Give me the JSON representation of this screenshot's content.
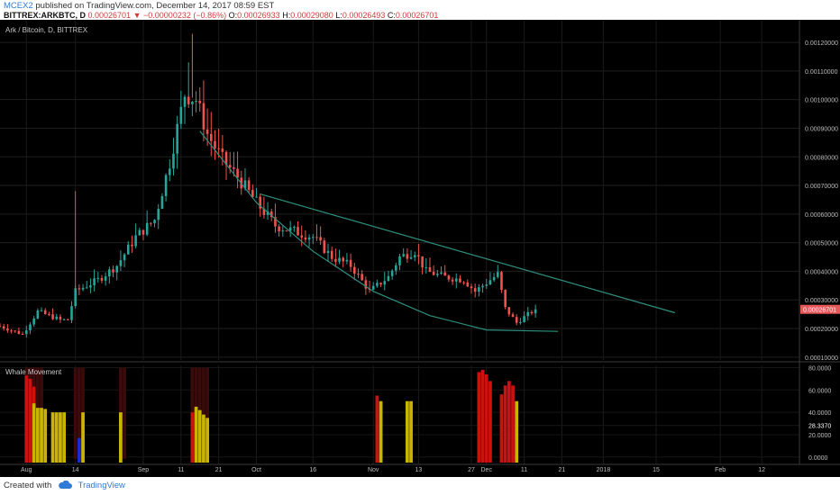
{
  "header": {
    "author": "MCEX2",
    "published": "published on TradingView.com, December 14, 2017 08:59 EST",
    "symbol": "BITTREX:ARKBTC, D",
    "last": "0.00026701",
    "arrow": "▼",
    "change": "−0.00000232 (−0.86%)",
    "o_label": "O:",
    "o_val": "0.00026933",
    "h_label": "H:",
    "h_val": "0.00029080",
    "l_label": "L:",
    "l_val": "0.00026493",
    "c_label": "C:",
    "c_val": "0.00026701"
  },
  "footer": {
    "created": "Created with",
    "brand": "TradingView"
  },
  "colors": {
    "up": "#26a69a",
    "down": "#ef5350",
    "trendline": "#2f8f7f",
    "whale_red": "#cc1111",
    "whale_yellow": "#c9b400",
    "whale_blue": "#1a2bd6",
    "last_price_badge": "#e45a5a"
  },
  "chart_data": [
    {
      "type": "candlestick",
      "title": "Ark / Bitcoin, D, BITTREX",
      "y_ticks": [
        0.0001,
        0.0002,
        0.0003,
        0.0004,
        0.0005,
        0.0006,
        0.0007,
        0.0008,
        0.0009,
        0.001,
        0.0011,
        0.0012
      ],
      "y_tick_labels": [
        "0.00010000",
        "0.00020000",
        "0.00030000",
        "0.00040000",
        "0.00050000",
        "0.00060000",
        "0.00070000",
        "0.00080000",
        "0.00090000",
        "0.00100000",
        "0.00110000",
        "0.00120000"
      ],
      "ylim": [
        9e-05,
        0.00126
      ],
      "last_price_label": "0.00026701",
      "last_price": 0.00026701,
      "x_start": "2017-07-25",
      "x_ticks": [
        {
          "date": "2017-08-01",
          "label": "Aug"
        },
        {
          "date": "2017-08-14",
          "label": "14"
        },
        {
          "date": "2017-09-01",
          "label": "Sep"
        },
        {
          "date": "2017-09-11",
          "label": "11"
        },
        {
          "date": "2017-09-21",
          "label": "21"
        },
        {
          "date": "2017-10-01",
          "label": "Oct"
        },
        {
          "date": "2017-10-16",
          "label": "16"
        },
        {
          "date": "2017-11-01",
          "label": "Nov"
        },
        {
          "date": "2017-11-13",
          "label": "13"
        },
        {
          "date": "2017-11-27",
          "label": "27"
        },
        {
          "date": "2017-12-01",
          "label": "Dec"
        },
        {
          "date": "2017-12-11",
          "label": "11"
        },
        {
          "date": "2017-12-21",
          "label": "21"
        },
        {
          "date": "2018-01-01",
          "label": "2018"
        },
        {
          "date": "2018-01-15",
          "label": "15"
        },
        {
          "date": "2018-02-01",
          "label": "Feb"
        },
        {
          "date": "2018-02-12",
          "label": "12"
        }
      ],
      "x_end": "2018-02-22",
      "close_series": [
        [
          "2017-07-25",
          0.000208
        ],
        [
          "2017-07-31",
          0.00018
        ],
        [
          "2017-08-04",
          0.00026
        ],
        [
          "2017-08-10",
          0.00023
        ],
        [
          "2017-08-12",
          0.00023
        ],
        [
          "2017-08-14",
          0.00033
        ],
        [
          "2017-08-20",
          0.00037
        ],
        [
          "2017-08-25",
          0.00042
        ],
        [
          "2017-08-30",
          0.00052
        ],
        [
          "2017-09-04",
          0.00058
        ],
        [
          "2017-09-08",
          0.00078
        ],
        [
          "2017-09-12",
          0.00102
        ],
        [
          "2017-09-15",
          0.001
        ],
        [
          "2017-09-18",
          0.00088
        ],
        [
          "2017-09-22",
          0.00079
        ],
        [
          "2017-09-26",
          0.00073
        ],
        [
          "2017-10-01",
          0.00064
        ],
        [
          "2017-10-06",
          0.00056
        ],
        [
          "2017-10-11",
          0.00054
        ],
        [
          "2017-10-16",
          0.00052
        ],
        [
          "2017-10-21",
          0.00045
        ],
        [
          "2017-10-26",
          0.00042
        ],
        [
          "2017-10-31",
          0.00033
        ],
        [
          "2017-11-05",
          0.00038
        ],
        [
          "2017-11-08",
          0.00045
        ],
        [
          "2017-11-12",
          0.00047
        ],
        [
          "2017-11-15",
          0.0004
        ],
        [
          "2017-11-20",
          0.00038
        ],
        [
          "2017-11-25",
          0.00037
        ],
        [
          "2017-11-28",
          0.00033
        ],
        [
          "2017-12-01",
          0.00036
        ],
        [
          "2017-12-04",
          0.00039
        ],
        [
          "2017-12-06",
          0.00027
        ],
        [
          "2017-12-09",
          0.00022
        ],
        [
          "2017-12-11",
          0.00024
        ],
        [
          "2017-12-14",
          0.000267
        ]
      ],
      "trendlines": [
        {
          "name": "descending-resistance",
          "points": [
            [
              "2017-10-02",
              0.00067
            ],
            [
              "2018-01-20",
              0.000255
            ]
          ]
        },
        {
          "name": "rounded-bottom-arc",
          "points": [
            [
              "2017-09-16",
              0.00089
            ],
            [
              "2017-10-01",
              0.00064
            ],
            [
              "2017-10-16",
              0.00047
            ],
            [
              "2017-11-01",
              0.00033
            ],
            [
              "2017-11-16",
              0.000245
            ],
            [
              "2017-12-01",
              0.000195
            ],
            [
              "2017-12-20",
              0.00019
            ]
          ]
        }
      ]
    },
    {
      "type": "bar",
      "title": "Whale Movement",
      "y_ticks": [
        0,
        20,
        28.337,
        40,
        60,
        80
      ],
      "y_tick_labels": [
        "0.0000",
        "20.0000",
        "28.3370",
        "40.0000",
        "60.0000",
        "80.0000"
      ],
      "current_value_label": "28.3370",
      "ylim": [
        -5,
        82
      ],
      "series": [
        {
          "name": "red",
          "values": [
            [
              "2017-08-01",
              73
            ],
            [
              "2017-08-02",
              70
            ],
            [
              "2017-08-03",
              63
            ],
            [
              "2017-09-14",
              40
            ],
            [
              "2017-11-02",
              55
            ],
            [
              "2017-11-29",
              76
            ],
            [
              "2017-11-30",
              78
            ],
            [
              "2017-12-01",
              74
            ],
            [
              "2017-12-02",
              68
            ],
            [
              "2017-12-05",
              56
            ],
            [
              "2017-12-06",
              64
            ],
            [
              "2017-12-07",
              68
            ],
            [
              "2017-12-08",
              64
            ]
          ]
        },
        {
          "name": "yellow",
          "values": [
            [
              "2017-08-03",
              48
            ],
            [
              "2017-08-04",
              44
            ],
            [
              "2017-08-05",
              44
            ],
            [
              "2017-08-06",
              43
            ],
            [
              "2017-08-08",
              40
            ],
            [
              "2017-08-09",
              40
            ],
            [
              "2017-08-10",
              40
            ],
            [
              "2017-08-11",
              40
            ],
            [
              "2017-08-16",
              40
            ],
            [
              "2017-08-26",
              40
            ],
            [
              "2017-09-15",
              45
            ],
            [
              "2017-09-16",
              42
            ],
            [
              "2017-09-17",
              38
            ],
            [
              "2017-09-18",
              35
            ],
            [
              "2017-11-03",
              50
            ],
            [
              "2017-11-10",
              50
            ],
            [
              "2017-11-11",
              50
            ],
            [
              "2017-12-09",
              50
            ]
          ]
        },
        {
          "name": "blue",
          "values": [
            [
              "2017-08-15",
              17
            ]
          ]
        },
        {
          "name": "background",
          "values": [
            [
              "2017-08-01",
              80
            ],
            [
              "2017-08-02",
              80
            ],
            [
              "2017-08-03",
              80
            ],
            [
              "2017-08-04",
              80
            ],
            [
              "2017-08-05",
              80
            ],
            [
              "2017-08-14",
              80
            ],
            [
              "2017-08-15",
              80
            ],
            [
              "2017-08-16",
              80
            ],
            [
              "2017-08-26",
              80
            ],
            [
              "2017-08-27",
              80
            ],
            [
              "2017-09-14",
              80
            ],
            [
              "2017-09-15",
              80
            ],
            [
              "2017-09-16",
              80
            ],
            [
              "2017-09-17",
              80
            ],
            [
              "2017-09-18",
              80
            ]
          ]
        }
      ]
    }
  ]
}
